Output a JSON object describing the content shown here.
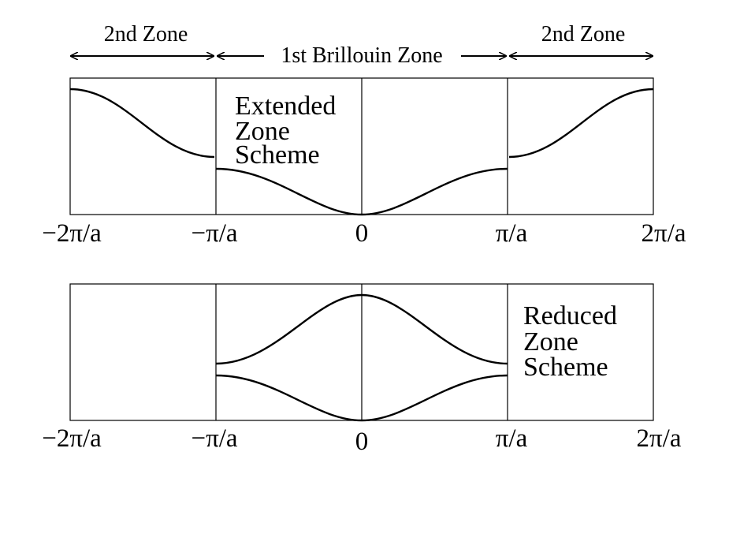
{
  "zones": {
    "left_second": "2nd Zone",
    "first": "1st Brillouin Zone",
    "right_second": "2nd Zone"
  },
  "extended_panel": {
    "label_lines": [
      "Extended",
      "Zone",
      "Scheme"
    ],
    "ticks": [
      "−2π/a",
      "−π/a",
      "0",
      "π/a",
      "2π/a"
    ]
  },
  "reduced_panel": {
    "label_lines": [
      "Reduced",
      "Zone",
      "Scheme"
    ],
    "ticks": [
      "−2π/a",
      "−π/a",
      "0",
      "π/a",
      "2π/a"
    ]
  },
  "colors": {
    "line": "#000000",
    "background": "#ffffff"
  }
}
